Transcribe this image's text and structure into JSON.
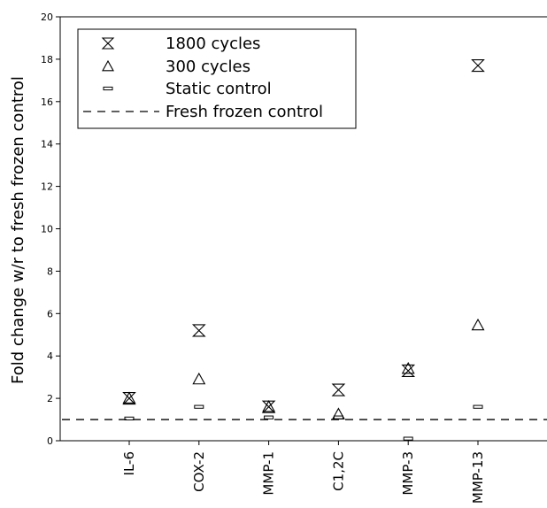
{
  "chart_data": {
    "type": "scatter",
    "title": "",
    "xlabel": "",
    "ylabel": "Fold change w/r to fresh frozen control",
    "categories": [
      "IL-6",
      "COX-2",
      "MMP-1",
      "C1,2C",
      "MMP-3",
      "MMP-13"
    ],
    "ylim": [
      0,
      20
    ],
    "yticks": [
      0,
      2,
      4,
      6,
      8,
      10,
      12,
      14,
      16,
      18,
      20
    ],
    "grid": false,
    "legend_position": "top-left",
    "series": [
      {
        "name": "1800 cycles",
        "marker": "hourglass",
        "values": [
          2.0,
          5.2,
          1.6,
          2.4,
          3.3,
          17.7
        ]
      },
      {
        "name": "300 cycles",
        "marker": "triangle",
        "values": [
          2.0,
          2.9,
          1.6,
          1.25,
          3.4,
          5.45
        ]
      },
      {
        "name": "Static control",
        "marker": "bar",
        "values": [
          1.05,
          1.6,
          1.1,
          1.1,
          0.1,
          1.6
        ]
      }
    ],
    "reference_line": {
      "name": "Fresh frozen control",
      "value": 1.0,
      "style": "dashed"
    }
  }
}
